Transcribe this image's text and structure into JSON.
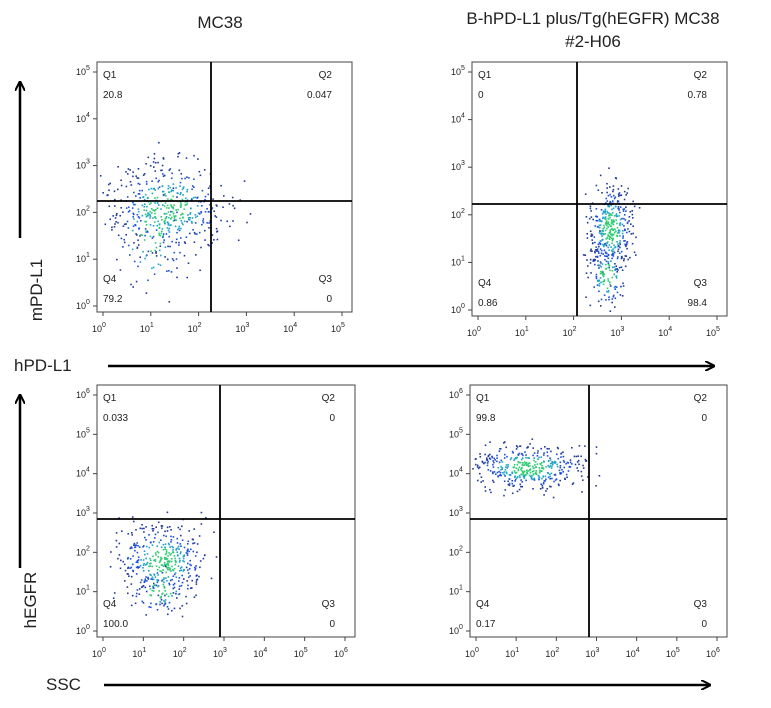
{
  "column_titles": [
    {
      "lines": [
        "MC38"
      ]
    },
    {
      "lines": [
        "B-hPD-L1 plus/Tg(hEGFR) MC38",
        "#2-H06"
      ]
    }
  ],
  "axis_labels": {
    "y_top": "mPD-L1",
    "x_top": "hPD-L1",
    "y_bottom": "hEGFR",
    "x_bottom": "SSC"
  },
  "tick_base": "10",
  "panels": [
    {
      "xticks": [
        "0",
        "1",
        "2",
        "3",
        "4",
        "5"
      ],
      "yticks": [
        "0",
        "1",
        "2",
        "3",
        "4",
        "5"
      ],
      "quadrants": [
        {
          "name": "Q1",
          "value": "20.8"
        },
        {
          "name": "Q2",
          "value": "0.047"
        },
        {
          "name": "Q3",
          "value": "0"
        },
        {
          "name": "Q4",
          "value": "79.2"
        }
      ]
    },
    {
      "xticks": [
        "0",
        "1",
        "2",
        "3",
        "4",
        "5"
      ],
      "yticks": [
        "0",
        "1",
        "2",
        "3",
        "4",
        "5"
      ],
      "quadrants": [
        {
          "name": "Q1",
          "value": "0"
        },
        {
          "name": "Q2",
          "value": "0.78"
        },
        {
          "name": "Q3",
          "value": "98.4"
        },
        {
          "name": "Q4",
          "value": "0.86"
        }
      ]
    },
    {
      "xticks": [
        "0",
        "1",
        "2",
        "3",
        "4",
        "5",
        "6"
      ],
      "yticks": [
        "0",
        "1",
        "2",
        "3",
        "4",
        "5",
        "6"
      ],
      "quadrants": [
        {
          "name": "Q1",
          "value": "0.033"
        },
        {
          "name": "Q2",
          "value": "0"
        },
        {
          "name": "Q3",
          "value": "0"
        },
        {
          "name": "Q4",
          "value": "100.0"
        }
      ]
    },
    {
      "xticks": [
        "0",
        "1",
        "2",
        "3",
        "4",
        "5",
        "6"
      ],
      "yticks": [
        "0",
        "1",
        "2",
        "3",
        "4",
        "5",
        "6"
      ],
      "quadrants": [
        {
          "name": "Q1",
          "value": "99.8"
        },
        {
          "name": "Q2",
          "value": "0"
        },
        {
          "name": "Q3",
          "value": "0"
        },
        {
          "name": "Q4",
          "value": "0.17"
        }
      ]
    }
  ]
}
